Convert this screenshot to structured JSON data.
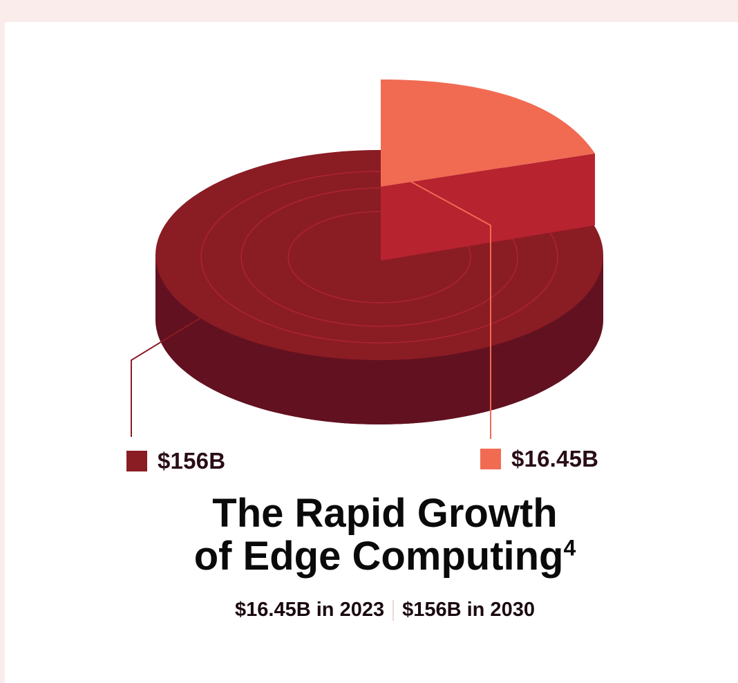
{
  "colors": {
    "page_background": "#f9eceb",
    "card_background": "#ffffff",
    "base_top": "#8a1c24",
    "base_side": "#621120",
    "ring": "#b52832",
    "slice_top": "#f16b53",
    "slice_side": "#b7232f",
    "leader_large": "#8a1c24",
    "leader_small": "#f16b53"
  },
  "chart_data": {
    "type": "pie",
    "style": "3d-exploded",
    "slices": [
      {
        "label": "$156B",
        "value": 156,
        "year": 2030,
        "color": "#8a1c24"
      },
      {
        "label": "$16.45B",
        "value": 16.45,
        "year": 2023,
        "color": "#f16b53"
      }
    ],
    "legend_placement": "below"
  },
  "legend": {
    "large": {
      "text": "$156B"
    },
    "small": {
      "text": "$16.45B"
    }
  },
  "title": {
    "line1": "The Rapid Growth",
    "line2": "of Edge Computing",
    "footnote": "4"
  },
  "subtitle": {
    "left": "$16.45B in 2023",
    "right": "$156B in 2030"
  }
}
